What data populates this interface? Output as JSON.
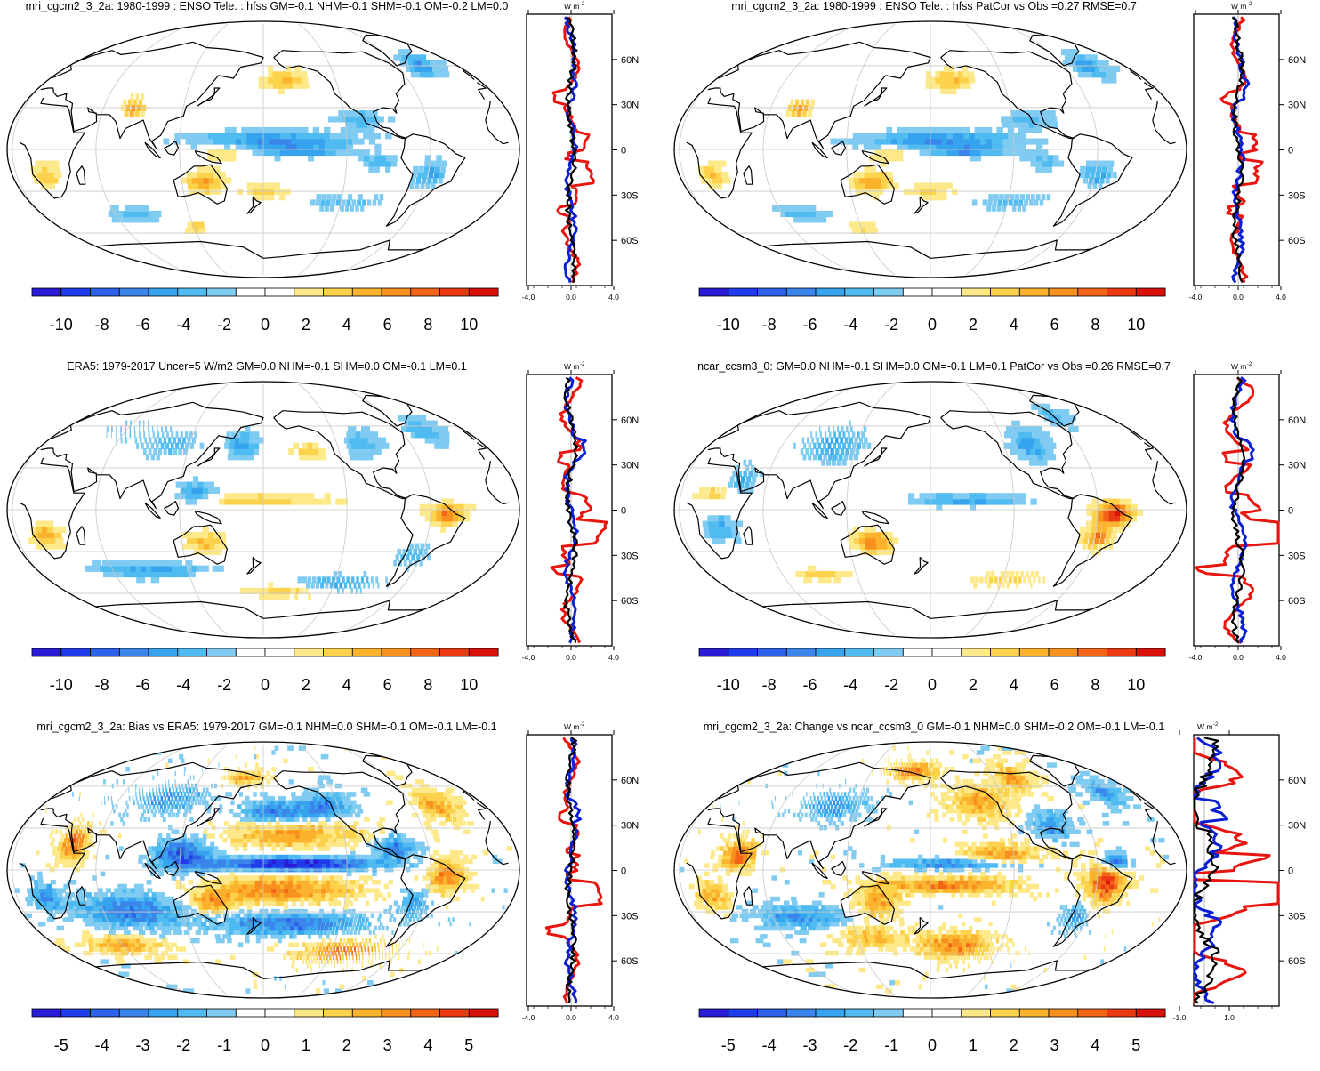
{
  "colors": {
    "scale": [
      "#2a1bd6",
      "#1f3bea",
      "#2e62ea",
      "#3b85ea",
      "#36a3ee",
      "#4fbbf0",
      "#7fcbf2",
      "#ffffff",
      "#ffffff",
      "#fde98a",
      "#fcd24d",
      "#fbb22c",
      "#f8901f",
      "#f36417",
      "#eb3a12",
      "#d61209"
    ],
    "obs_line": "#0a1fd4",
    "model_line": "#e8150f",
    "mean_line": "#000000",
    "land_outline": "#000000",
    "grid": "#c8c8c8"
  },
  "units_label": "W m",
  "units_exponent": "-2",
  "panels": [
    {
      "id": "p1",
      "title": "mri_cgcm2_3_2a: 1980-1999 : ENSO Tele. : hfss GM=-0.1 NHM=-0.1 SHM=-0.1 OM=-0.2 LM=0.0",
      "colorbar_labels": [
        "-10",
        "-8",
        "-6",
        "-4",
        "-2",
        "0",
        "2",
        "4",
        "6",
        "8",
        "10"
      ],
      "profile_xticks": [
        "-4.0",
        "0.0",
        "4.0"
      ],
      "profile_yticks": [
        "60N",
        "30N",
        "0",
        "30S",
        "60S"
      ],
      "amp": 1
    },
    {
      "id": "p2",
      "title": "mri_cgcm2_3_2a: 1980-1999 : ENSO Tele. : hfss PatCor vs Obs =0.27 RMSE=0.7",
      "colorbar_labels": [
        "-10",
        "-8",
        "-6",
        "-4",
        "-2",
        "0",
        "2",
        "4",
        "6",
        "8",
        "10"
      ],
      "profile_xticks": [
        "-4.0",
        "0.0",
        "4.0"
      ],
      "profile_yticks": [
        "60N",
        "30N",
        "0",
        "30S",
        "60S"
      ],
      "amp": 1
    },
    {
      "id": "p3",
      "title": "ERA5: 1979-2017 Uncer=5 W/m2 GM=0.0 NHM=-0.1 SHM=0.0 OM=-0.1 LM=0.1",
      "colorbar_labels": [
        "-10",
        "-8",
        "-6",
        "-4",
        "-2",
        "0",
        "2",
        "4",
        "6",
        "8",
        "10"
      ],
      "profile_xticks": [
        "-4.0",
        "0.0",
        "4.0"
      ],
      "profile_yticks": [
        "60N",
        "30N",
        "0",
        "30S",
        "60S"
      ],
      "amp": 1.3
    },
    {
      "id": "p4",
      "title": "ncar_ccsm3_0: GM=0.0 NHM=-0.1 SHM=0.0 OM=-0.1 LM=0.1 PatCor vs Obs =0.26 RMSE=0.7",
      "colorbar_labels": [
        "-10",
        "-8",
        "-6",
        "-4",
        "-2",
        "0",
        "2",
        "4",
        "6",
        "8",
        "10"
      ],
      "profile_xticks": [
        "-4.0",
        "0.0",
        "4.0"
      ],
      "profile_yticks": [
        "60N",
        "30N",
        "0",
        "30S",
        "60S"
      ],
      "amp": 2
    },
    {
      "id": "p5",
      "title": "mri_cgcm2_3_2a: Bias vs ERA5: 1979-2017 GM=-0.1 NHM=0.0 SHM=-0.1 OM=-0.1 LM=-0.1",
      "colorbar_labels": [
        "-5",
        "-4",
        "-3",
        "-2",
        "-1",
        "0",
        "1",
        "2",
        "3",
        "4",
        "5"
      ],
      "profile_xticks": [
        "-4.0",
        "0.0",
        "4.0"
      ],
      "profile_yticks": [
        "60N",
        "30N",
        "0",
        "30S",
        "60S"
      ],
      "amp": 1
    },
    {
      "id": "p6",
      "title": "mri_cgcm2_3_2a: Change vs ncar_ccsm3_0 GM=-0.1 NHM=0.0 SHM=-0.2 OM=-0.1 LM=-0.1",
      "colorbar_labels": [
        "-5",
        "-4",
        "-3",
        "-2",
        "-1",
        "0",
        "1",
        "2",
        "3",
        "4",
        "5"
      ],
      "profile_xticks": [
        "-1.0",
        "1.0"
      ],
      "profile_yticks": [
        "60N",
        "30N",
        "0",
        "30S",
        "60S"
      ],
      "amp": 2.5
    }
  ]
}
